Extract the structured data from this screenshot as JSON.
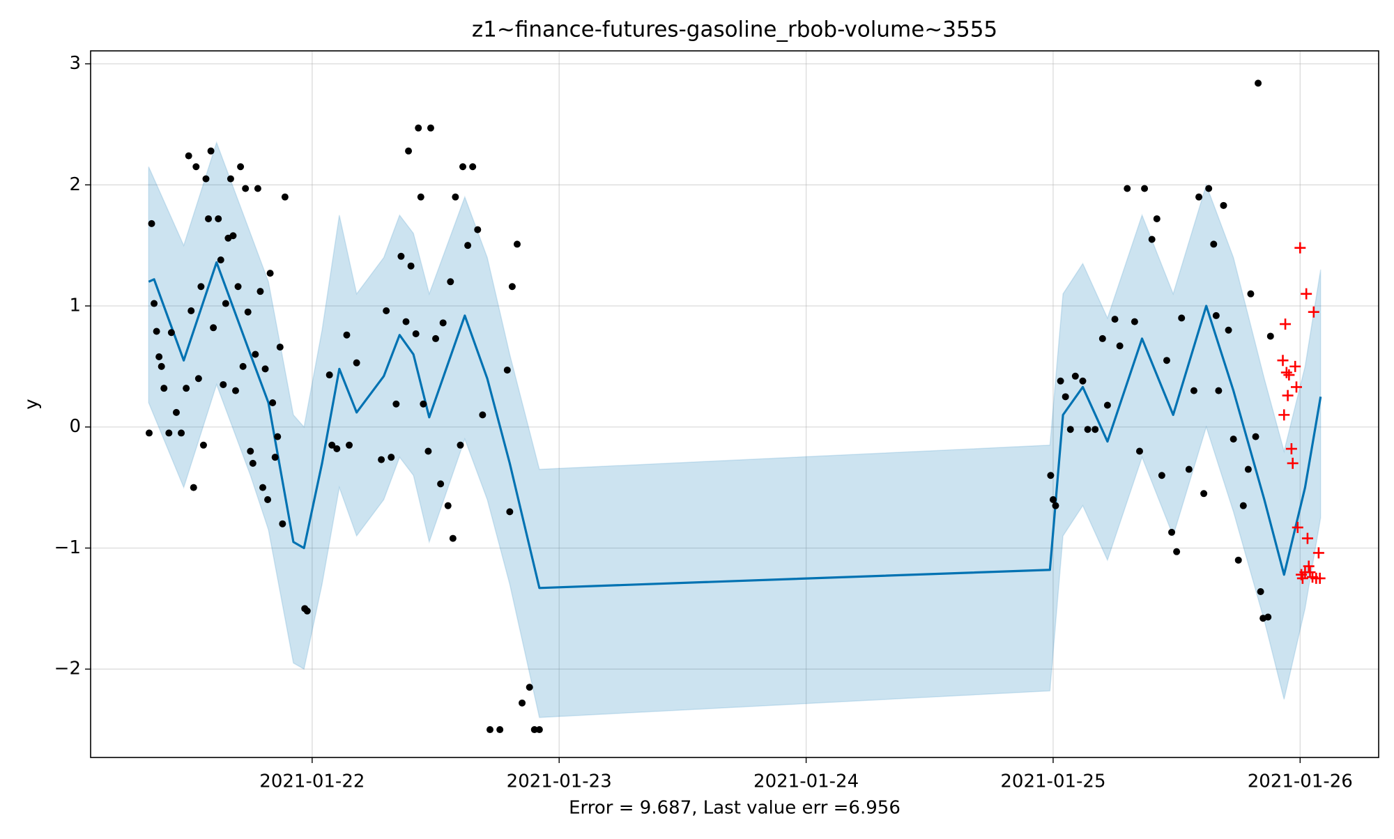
{
  "chart_data": {
    "type": "forecast",
    "title": "z1~finance-futures-gasoline_rbob-volume~3555",
    "xlabel": "Error = 9.687, Last value err =6.956",
    "ylabel": "y",
    "xlim": [
      -0.897,
      4.318
    ],
    "ylim": [
      -2.73,
      3.107
    ],
    "xticks": [
      {
        "value": 0,
        "label": "2021-01-22"
      },
      {
        "value": 1,
        "label": "2021-01-23"
      },
      {
        "value": 2,
        "label": "2021-01-24"
      },
      {
        "value": 3,
        "label": "2021-01-25"
      },
      {
        "value": 4,
        "label": "2021-01-26"
      }
    ],
    "yticks": [
      {
        "value": -2,
        "label": "−2"
      },
      {
        "value": -1,
        "label": "−1"
      },
      0,
      1,
      2,
      3
    ],
    "grid": true,
    "interval": {
      "color": "#0072b2",
      "x": [
        -0.662,
        -0.52,
        -0.387,
        -0.25,
        -0.177,
        -0.076,
        -0.033,
        0.04,
        0.11,
        0.18,
        0.29,
        0.354,
        0.41,
        0.474,
        0.618,
        0.709,
        0.8,
        0.92,
        2.987,
        3.04,
        3.12,
        3.22,
        3.36,
        3.486,
        3.62,
        3.73,
        3.855,
        3.935,
        4.02,
        4.083
      ],
      "upper": [
        2.15,
        1.5,
        2.35,
        1.6,
        1.2,
        0.1,
        0.0,
        0.8,
        1.75,
        1.1,
        1.4,
        1.75,
        1.6,
        1.1,
        1.9,
        1.4,
        0.6,
        -0.35,
        -0.15,
        1.1,
        1.35,
        0.9,
        1.75,
        1.1,
        2.0,
        1.4,
        0.4,
        -0.2,
        0.5,
        1.3
      ],
      "lower": [
        0.2,
        -0.5,
        0.35,
        -0.4,
        -0.85,
        -1.95,
        -2.0,
        -1.3,
        -0.5,
        -0.9,
        -0.6,
        -0.25,
        -0.4,
        -0.95,
        -0.1,
        -0.6,
        -1.3,
        -2.4,
        -2.18,
        -0.9,
        -0.65,
        -1.1,
        -0.25,
        -0.9,
        0.0,
        -0.7,
        -1.6,
        -2.25,
        -1.5,
        -0.75
      ]
    },
    "series": [
      {
        "kind": "line",
        "color": "#0072b2",
        "x": [
          -0.662,
          -0.64,
          -0.52,
          -0.387,
          -0.25,
          -0.177,
          -0.076,
          -0.033,
          0.04,
          0.11,
          0.18,
          0.29,
          0.354,
          0.41,
          0.474,
          0.618,
          0.709,
          0.8,
          0.92,
          2.987,
          3.04,
          3.12,
          3.22,
          3.36,
          3.486,
          3.62,
          3.73,
          3.855,
          3.935,
          4.02,
          4.083
        ],
        "values": [
          1.2,
          1.22,
          0.55,
          1.36,
          0.6,
          0.2,
          -0.95,
          -1.0,
          -0.3,
          0.48,
          0.12,
          0.42,
          0.76,
          0.6,
          0.08,
          0.92,
          0.4,
          -0.3,
          -1.33,
          -1.18,
          0.1,
          0.33,
          -0.12,
          0.73,
          0.1,
          1.0,
          0.3,
          -0.6,
          -1.22,
          -0.5,
          0.25
        ]
      },
      {
        "kind": "points",
        "marker": "o",
        "color": "#000000",
        "x": [
          -0.66,
          -0.65,
          -0.64,
          -0.63,
          -0.62,
          -0.61,
          -0.6,
          -0.58,
          -0.57,
          -0.55,
          -0.53,
          -0.51,
          -0.5,
          -0.49,
          -0.48,
          -0.47,
          -0.46,
          -0.45,
          -0.44,
          -0.43,
          -0.42,
          -0.41,
          -0.4,
          -0.38,
          -0.37,
          -0.36,
          -0.35,
          -0.34,
          -0.33,
          -0.32,
          -0.31,
          -0.3,
          -0.29,
          -0.28,
          -0.27,
          -0.26,
          -0.25,
          -0.24,
          -0.23,
          -0.22,
          -0.21,
          -0.2,
          -0.19,
          -0.18,
          -0.17,
          -0.16,
          -0.15,
          -0.14,
          -0.13,
          -0.12,
          -0.11,
          -0.03,
          -0.02,
          0.07,
          0.08,
          0.1,
          0.14,
          0.15,
          0.18,
          0.28,
          0.3,
          0.32,
          0.34,
          0.36,
          0.38,
          0.39,
          0.4,
          0.42,
          0.43,
          0.44,
          0.45,
          0.47,
          0.48,
          0.5,
          0.52,
          0.53,
          0.55,
          0.56,
          0.57,
          0.58,
          0.6,
          0.61,
          0.63,
          0.65,
          0.67,
          0.69,
          0.72,
          0.76,
          0.79,
          0.8,
          0.81,
          0.83,
          0.85,
          0.88,
          0.9,
          0.92,
          2.99,
          3.0,
          3.01,
          3.03,
          3.05,
          3.07,
          3.09,
          3.12,
          3.14,
          3.17,
          3.2,
          3.22,
          3.25,
          3.27,
          3.3,
          3.33,
          3.35,
          3.37,
          3.4,
          3.42,
          3.44,
          3.46,
          3.48,
          3.5,
          3.52,
          3.55,
          3.57,
          3.59,
          3.61,
          3.63,
          3.65,
          3.66,
          3.67,
          3.69,
          3.71,
          3.73,
          3.75,
          3.77,
          3.79,
          3.8,
          3.82,
          3.83,
          3.84,
          3.85,
          3.87,
          3.88
        ],
        "values": [
          -0.05,
          1.68,
          1.02,
          0.79,
          0.58,
          0.5,
          0.32,
          -0.05,
          0.78,
          0.12,
          -0.05,
          0.32,
          2.24,
          0.96,
          -0.5,
          2.15,
          0.4,
          1.16,
          -0.15,
          2.05,
          1.72,
          2.28,
          0.82,
          1.72,
          1.38,
          0.35,
          1.02,
          1.56,
          2.05,
          1.58,
          0.3,
          1.16,
          2.15,
          0.5,
          1.97,
          0.95,
          -0.2,
          -0.3,
          0.6,
          1.97,
          1.12,
          -0.5,
          0.48,
          -0.6,
          1.27,
          0.2,
          -0.25,
          -0.08,
          0.66,
          -0.8,
          1.9,
          -1.5,
          -1.52,
          0.43,
          -0.15,
          -0.18,
          0.76,
          -0.15,
          0.53,
          -0.27,
          0.96,
          -0.25,
          0.19,
          1.41,
          0.87,
          2.28,
          1.33,
          0.77,
          2.47,
          1.9,
          0.19,
          -0.2,
          2.47,
          0.73,
          -0.47,
          0.86,
          -0.65,
          1.2,
          -0.92,
          1.9,
          -0.15,
          2.15,
          1.5,
          2.15,
          1.63,
          0.1,
          -2.5,
          -2.5,
          0.47,
          -0.7,
          1.16,
          1.51,
          -2.28,
          -2.15,
          -2.5,
          -2.5,
          -0.4,
          -0.6,
          -0.65,
          0.38,
          0.25,
          -0.02,
          0.42,
          0.38,
          -0.02,
          -0.02,
          0.73,
          0.18,
          0.89,
          0.67,
          1.97,
          0.87,
          -0.2,
          1.97,
          1.55,
          1.72,
          -0.4,
          0.55,
          -0.87,
          -1.03,
          0.9,
          -0.35,
          0.3,
          1.9,
          -0.55,
          1.97,
          1.51,
          0.92,
          0.3,
          1.83,
          0.8,
          -0.1,
          -1.1,
          -0.65,
          -0.35,
          1.1,
          -0.08,
          2.84,
          -1.36,
          -1.58,
          -1.57,
          0.75
        ]
      },
      {
        "kind": "points",
        "marker": "+",
        "color": "#ff0000",
        "x": [
          3.93,
          3.935,
          3.94,
          3.945,
          3.95,
          3.955,
          3.965,
          3.97,
          3.98,
          3.985,
          3.99,
          4.0,
          4.005,
          4.01,
          4.02,
          4.025,
          4.03,
          4.035,
          4.04,
          4.05,
          4.055,
          4.065,
          4.075,
          4.08
        ],
        "values": [
          0.55,
          0.1,
          0.85,
          0.45,
          0.26,
          0.43,
          -0.18,
          -0.3,
          0.5,
          0.33,
          -0.83,
          1.48,
          -1.22,
          -1.25,
          -1.2,
          1.1,
          -0.92,
          -1.15,
          -1.2,
          -1.24,
          0.95,
          -1.25,
          -1.04,
          -1.25
        ]
      }
    ]
  }
}
